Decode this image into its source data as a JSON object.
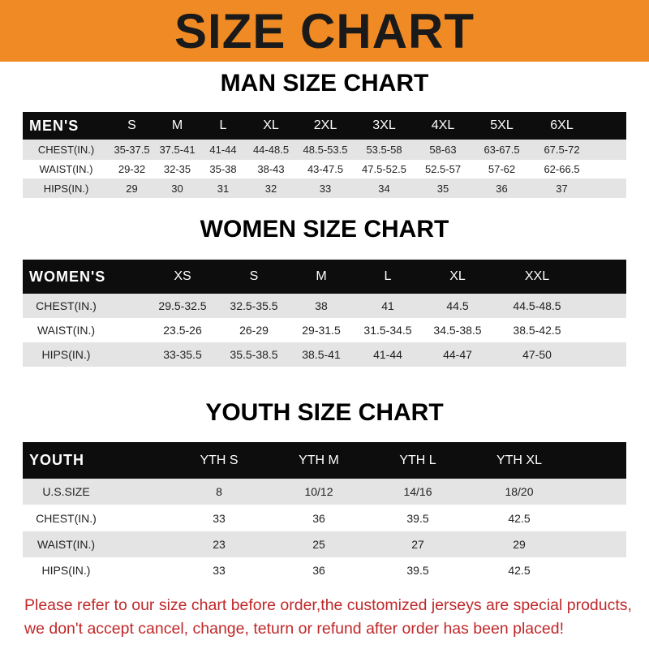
{
  "banner": {
    "title": "SIZE CHART",
    "color": "#f08a24"
  },
  "men": {
    "title": "MAN SIZE CHART",
    "header": [
      "MEN'S",
      "S",
      "M",
      "L",
      "XL",
      "2XL",
      "3XL",
      "4XL",
      "5XL",
      "6XL"
    ],
    "rows": [
      [
        "CHEST(IN.)",
        "35-37.5",
        "37.5-41",
        "41-44",
        "44-48.5",
        "48.5-53.5",
        "53.5-58",
        "58-63",
        "63-67.5",
        "67.5-72"
      ],
      [
        "WAIST(IN.)",
        "29-32",
        "32-35",
        "35-38",
        "38-43",
        "43-47.5",
        "47.5-52.5",
        "52.5-57",
        "57-62",
        "62-66.5"
      ],
      [
        "HIPS(IN.)",
        "29",
        "30",
        "31",
        "32",
        "33",
        "34",
        "35",
        "36",
        "37"
      ]
    ]
  },
  "women": {
    "title": "WOMEN SIZE CHART",
    "header": [
      "WOMEN'S",
      "XS",
      "S",
      "M",
      "L",
      "XL",
      "XXL"
    ],
    "rows": [
      [
        "CHEST(IN.)",
        "29.5-32.5",
        "32.5-35.5",
        "38",
        "41",
        "44.5",
        "44.5-48.5"
      ],
      [
        "WAIST(IN.)",
        "23.5-26",
        "26-29",
        "29-31.5",
        "31.5-34.5",
        "34.5-38.5",
        "38.5-42.5"
      ],
      [
        "HIPS(IN.)",
        "33-35.5",
        "35.5-38.5",
        "38.5-41",
        "41-44",
        "44-47",
        "47-50"
      ]
    ]
  },
  "youth": {
    "title": "YOUTH SIZE CHART",
    "header": [
      "YOUTH",
      "YTH S",
      "YTH M",
      "YTH L",
      "YTH XL"
    ],
    "rows": [
      [
        "U.S.SIZE",
        "8",
        "10/12",
        "14/16",
        "18/20"
      ],
      [
        "CHEST(IN.)",
        "33",
        "36",
        "39.5",
        "42.5"
      ],
      [
        "WAIST(IN.)",
        "23",
        "25",
        "27",
        "29"
      ],
      [
        "HIPS(IN.)",
        "33",
        "36",
        "39.5",
        "42.5"
      ]
    ]
  },
  "footer": {
    "line1": "Please refer to our size chart before order,the customized jerseys are special products,",
    "line2": "we don't accept cancel, change, teturn or refund after order has been placed!",
    "color": "#c0282a"
  }
}
